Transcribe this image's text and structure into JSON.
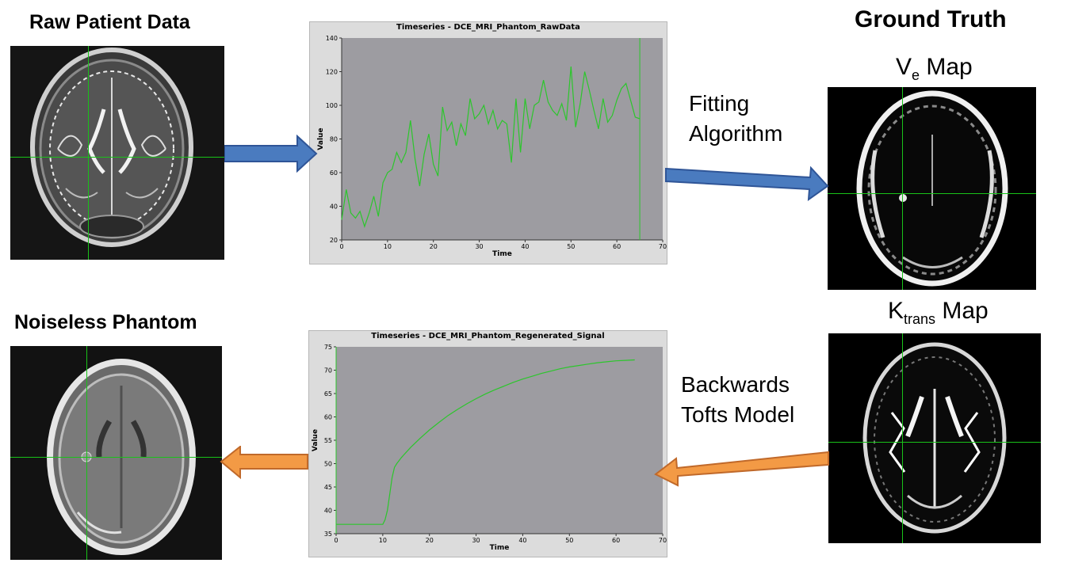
{
  "headings": {
    "raw_patient_data": "Raw Patient Data",
    "ground_truth": "Ground Truth",
    "noiseless_phantom": "Noiseless Phantom"
  },
  "maps": {
    "ve": {
      "base": "V",
      "sub": "e",
      "rest": " Map"
    },
    "ktrans": {
      "base": "K",
      "sub": "trans",
      "rest": " Map"
    }
  },
  "labels": {
    "fitting_line1": "Fitting",
    "fitting_line2": "Algorithm",
    "backwards_line1": "Backwards",
    "backwards_line2": "Tofts Model"
  },
  "colors": {
    "blue_arrow": "#4a7bbf",
    "orange_arrow": "#f39a45",
    "series_green": "#2cc62c",
    "plot_bg": "#9d9ca1",
    "crosshair": "#19c219"
  },
  "chart_data": [
    {
      "type": "line",
      "title": "Timeseries - DCE_MRI_Phantom_RawData",
      "xlabel": "Time",
      "ylabel": "Value",
      "xlim": [
        0,
        70
      ],
      "ylim": [
        20,
        140
      ],
      "xticks": [
        0,
        10,
        20,
        30,
        40,
        50,
        60,
        70
      ],
      "yticks": [
        20,
        40,
        60,
        80,
        100,
        120,
        140
      ],
      "marker_x": 65,
      "series": [
        {
          "x": [
            0,
            1,
            2,
            3,
            4,
            5,
            6,
            7,
            8,
            9,
            10,
            11,
            12,
            13,
            14,
            15,
            16,
            17,
            18,
            19,
            20,
            21,
            22,
            23,
            24,
            25,
            26,
            27,
            28,
            29,
            30,
            31,
            32,
            33,
            34,
            35,
            36,
            37,
            38,
            39,
            40,
            41,
            42,
            43,
            44,
            45,
            46,
            47,
            48,
            49,
            50,
            51,
            52,
            53,
            54,
            55,
            56,
            57,
            58,
            59,
            60,
            61,
            62,
            63,
            64,
            65
          ],
          "y": [
            32,
            50,
            36,
            33,
            37,
            28,
            36,
            46,
            34,
            54,
            60,
            62,
            72,
            66,
            72,
            91,
            68,
            52,
            71,
            83,
            65,
            58,
            99,
            85,
            90,
            76,
            89,
            82,
            104,
            92,
            95,
            100,
            89,
            97,
            86,
            91,
            89,
            66,
            104,
            72,
            104,
            86,
            100,
            102,
            115,
            102,
            97,
            94,
            101,
            91,
            123,
            87,
            101,
            120,
            109,
            97,
            86,
            104,
            90,
            94,
            103,
            110,
            113,
            103,
            93,
            92
          ]
        }
      ]
    },
    {
      "type": "line",
      "title": "Timeseries - DCE_MRI_Phantom_Regenerated_Signal",
      "xlabel": "Time",
      "ylabel": "Value",
      "xlim": [
        0,
        70
      ],
      "ylim": [
        35,
        75
      ],
      "xticks": [
        0,
        10,
        20,
        30,
        40,
        50,
        60,
        70
      ],
      "yticks": [
        35,
        40,
        45,
        50,
        55,
        60,
        65,
        70,
        75
      ],
      "marker_x": 0,
      "series": [
        {
          "x": [
            0,
            2,
            4,
            6,
            8,
            10,
            10.5,
            11,
            11.5,
            12,
            12.5,
            13,
            14,
            16,
            18,
            20,
            22,
            24,
            26,
            28,
            30,
            32,
            34,
            36,
            38,
            40,
            42,
            44,
            46,
            48,
            50,
            52,
            54,
            56,
            58,
            60,
            62,
            64
          ],
          "y": [
            37,
            37,
            37,
            37,
            37,
            37,
            38,
            40,
            43.5,
            47,
            49.2,
            50,
            51.3,
            53.5,
            55.4,
            57.2,
            58.8,
            60.3,
            61.6,
            62.8,
            63.9,
            64.9,
            65.8,
            66.6,
            67.4,
            68.1,
            68.7,
            69.3,
            69.8,
            70.3,
            70.7,
            71,
            71.3,
            71.6,
            71.8,
            72,
            72.1,
            72.2
          ]
        }
      ]
    }
  ]
}
